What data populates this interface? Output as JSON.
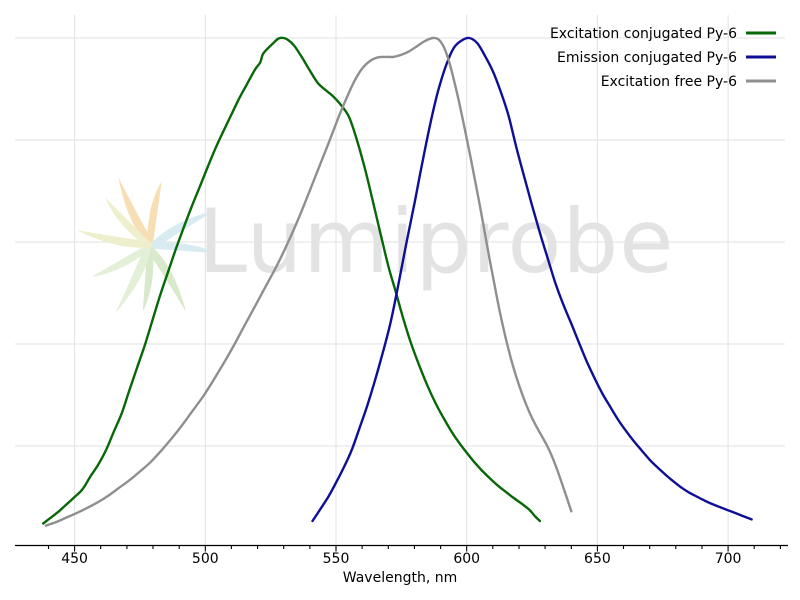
{
  "watermark": {
    "text": "Lumiprobe"
  },
  "legend": {
    "entries": [
      {
        "label": "Excitation conjugated Py-6",
        "color": "#086808"
      },
      {
        "label": "Emission conjugated Py-6",
        "color": "#0f0f96"
      },
      {
        "label": "Excitation free Py-6",
        "color": "#8f8f8f"
      }
    ]
  },
  "axes": {
    "x": {
      "label": "Wavelength, nm",
      "tick_labels": [
        "450",
        "500",
        "550",
        "600",
        "650",
        "700"
      ],
      "tick_values": [
        450,
        500,
        550,
        600,
        650,
        700
      ],
      "minor_tick_step": 10,
      "minor_tick_range": [
        440,
        720
      ]
    },
    "y": {
      "gridline_values": [
        0.2,
        0.4,
        0.6,
        0.8,
        1.0
      ],
      "tick_labels": []
    }
  },
  "chart_data": {
    "type": "line",
    "title": "",
    "xlabel": "Wavelength, nm",
    "ylabel": "",
    "xlim": [
      427,
      723
    ],
    "ylim": [
      0,
      1.04
    ],
    "grid": true,
    "legend_position": "top-right",
    "normalized_intensity": true,
    "series": [
      {
        "name": "Excitation conjugated Py-6",
        "color": "#086808",
        "peak_nm": 528,
        "points": [
          [
            438,
            0.048
          ],
          [
            441,
            0.06
          ],
          [
            444,
            0.072
          ],
          [
            447,
            0.086
          ],
          [
            450,
            0.1
          ],
          [
            453,
            0.115
          ],
          [
            456,
            0.14
          ],
          [
            459,
            0.163
          ],
          [
            462,
            0.192
          ],
          [
            465,
            0.228
          ],
          [
            468,
            0.264
          ],
          [
            471,
            0.31
          ],
          [
            474,
            0.355
          ],
          [
            477,
            0.4
          ],
          [
            480,
            0.45
          ],
          [
            483,
            0.5
          ],
          [
            486,
            0.545
          ],
          [
            489,
            0.59
          ],
          [
            492,
            0.632
          ],
          [
            495,
            0.672
          ],
          [
            498,
            0.71
          ],
          [
            501,
            0.748
          ],
          [
            504,
            0.785
          ],
          [
            507,
            0.818
          ],
          [
            510,
            0.85
          ],
          [
            513,
            0.882
          ],
          [
            516,
            0.91
          ],
          [
            519,
            0.938
          ],
          [
            521,
            0.952
          ],
          [
            522,
            0.968
          ],
          [
            524,
            0.98
          ],
          [
            526,
            0.99
          ],
          [
            528,
            0.999
          ],
          [
            530,
            1.0
          ],
          [
            532,
            0.995
          ],
          [
            534,
            0.985
          ],
          [
            537,
            0.962
          ],
          [
            540,
            0.936
          ],
          [
            543,
            0.912
          ],
          [
            546,
            0.898
          ],
          [
            549,
            0.885
          ],
          [
            552,
            0.868
          ],
          [
            555,
            0.845
          ],
          [
            558,
            0.8
          ],
          [
            561,
            0.745
          ],
          [
            564,
            0.682
          ],
          [
            567,
            0.617
          ],
          [
            570,
            0.553
          ],
          [
            573,
            0.5
          ],
          [
            576,
            0.445
          ],
          [
            579,
            0.397
          ],
          [
            582,
            0.356
          ],
          [
            585,
            0.318
          ],
          [
            588,
            0.285
          ],
          [
            591,
            0.256
          ],
          [
            594,
            0.23
          ],
          [
            597,
            0.207
          ],
          [
            600,
            0.187
          ],
          [
            603,
            0.168
          ],
          [
            606,
            0.151
          ],
          [
            609,
            0.136
          ],
          [
            612,
            0.122
          ],
          [
            615,
            0.11
          ],
          [
            618,
            0.098
          ],
          [
            621,
            0.087
          ],
          [
            624,
            0.075
          ],
          [
            626,
            0.063
          ],
          [
            628,
            0.053
          ]
        ]
      },
      {
        "name": "Emission conjugated Py-6",
        "color": "#0f0f96",
        "peak_nm": 601,
        "points": [
          [
            541,
            0.053
          ],
          [
            544,
            0.076
          ],
          [
            547,
            0.1
          ],
          [
            550,
            0.128
          ],
          [
            553,
            0.158
          ],
          [
            556,
            0.192
          ],
          [
            559,
            0.235
          ],
          [
            562,
            0.28
          ],
          [
            565,
            0.33
          ],
          [
            568,
            0.385
          ],
          [
            571,
            0.445
          ],
          [
            574,
            0.52
          ],
          [
            577,
            0.6
          ],
          [
            580,
            0.675
          ],
          [
            583,
            0.755
          ],
          [
            586,
            0.83
          ],
          [
            589,
            0.895
          ],
          [
            592,
            0.945
          ],
          [
            595,
            0.98
          ],
          [
            598,
            0.995
          ],
          [
            601,
            1.0
          ],
          [
            604,
            0.99
          ],
          [
            607,
            0.965
          ],
          [
            610,
            0.935
          ],
          [
            613,
            0.895
          ],
          [
            616,
            0.848
          ],
          [
            619,
            0.785
          ],
          [
            622,
            0.728
          ],
          [
            625,
            0.672
          ],
          [
            628,
            0.618
          ],
          [
            631,
            0.568
          ],
          [
            634,
            0.518
          ],
          [
            637,
            0.477
          ],
          [
            640,
            0.44
          ],
          [
            643,
            0.402
          ],
          [
            646,
            0.365
          ],
          [
            649,
            0.332
          ],
          [
            652,
            0.302
          ],
          [
            655,
            0.276
          ],
          [
            658,
            0.251
          ],
          [
            661,
            0.229
          ],
          [
            664,
            0.209
          ],
          [
            667,
            0.191
          ],
          [
            670,
            0.173
          ],
          [
            673,
            0.158
          ],
          [
            676,
            0.144
          ],
          [
            679,
            0.131
          ],
          [
            682,
            0.119
          ],
          [
            685,
            0.109
          ],
          [
            688,
            0.101
          ],
          [
            691,
            0.093
          ],
          [
            694,
            0.086
          ],
          [
            697,
            0.08
          ],
          [
            700,
            0.074
          ],
          [
            703,
            0.068
          ],
          [
            706,
            0.062
          ],
          [
            709,
            0.056
          ]
        ]
      },
      {
        "name": "Excitation free Py-6",
        "color": "#8f8f8f",
        "peak_nm": 587,
        "points": [
          [
            439,
            0.044
          ],
          [
            443,
            0.051
          ],
          [
            447,
            0.06
          ],
          [
            451,
            0.069
          ],
          [
            455,
            0.079
          ],
          [
            459,
            0.09
          ],
          [
            463,
            0.103
          ],
          [
            467,
            0.118
          ],
          [
            471,
            0.133
          ],
          [
            475,
            0.15
          ],
          [
            479,
            0.168
          ],
          [
            483,
            0.19
          ],
          [
            487,
            0.214
          ],
          [
            491,
            0.24
          ],
          [
            495,
            0.268
          ],
          [
            499,
            0.296
          ],
          [
            503,
            0.328
          ],
          [
            507,
            0.362
          ],
          [
            511,
            0.398
          ],
          [
            515,
            0.436
          ],
          [
            519,
            0.474
          ],
          [
            523,
            0.512
          ],
          [
            527,
            0.55
          ],
          [
            531,
            0.592
          ],
          [
            535,
            0.638
          ],
          [
            539,
            0.688
          ],
          [
            543,
            0.74
          ],
          [
            547,
            0.792
          ],
          [
            551,
            0.845
          ],
          [
            554,
            0.882
          ],
          [
            557,
            0.915
          ],
          [
            560,
            0.94
          ],
          [
            563,
            0.955
          ],
          [
            566,
            0.962
          ],
          [
            569,
            0.963
          ],
          [
            572,
            0.963
          ],
          [
            575,
            0.967
          ],
          [
            578,
            0.974
          ],
          [
            581,
            0.984
          ],
          [
            584,
            0.994
          ],
          [
            587,
            1.0
          ],
          [
            589,
            0.998
          ],
          [
            591,
            0.985
          ],
          [
            593,
            0.958
          ],
          [
            595,
            0.92
          ],
          [
            597,
            0.876
          ],
          [
            599,
            0.828
          ],
          [
            601,
            0.778
          ],
          [
            603,
            0.726
          ],
          [
            605,
            0.672
          ],
          [
            607,
            0.616
          ],
          [
            609,
            0.56
          ],
          [
            611,
            0.506
          ],
          [
            613,
            0.455
          ],
          [
            615,
            0.41
          ],
          [
            617,
            0.37
          ],
          [
            619,
            0.335
          ],
          [
            621,
            0.305
          ],
          [
            623,
            0.278
          ],
          [
            625,
            0.255
          ],
          [
            627,
            0.235
          ],
          [
            629,
            0.217
          ],
          [
            631,
            0.198
          ],
          [
            633,
            0.175
          ],
          [
            635,
            0.148
          ],
          [
            637,
            0.118
          ],
          [
            639,
            0.088
          ],
          [
            640,
            0.072
          ]
        ]
      }
    ]
  }
}
